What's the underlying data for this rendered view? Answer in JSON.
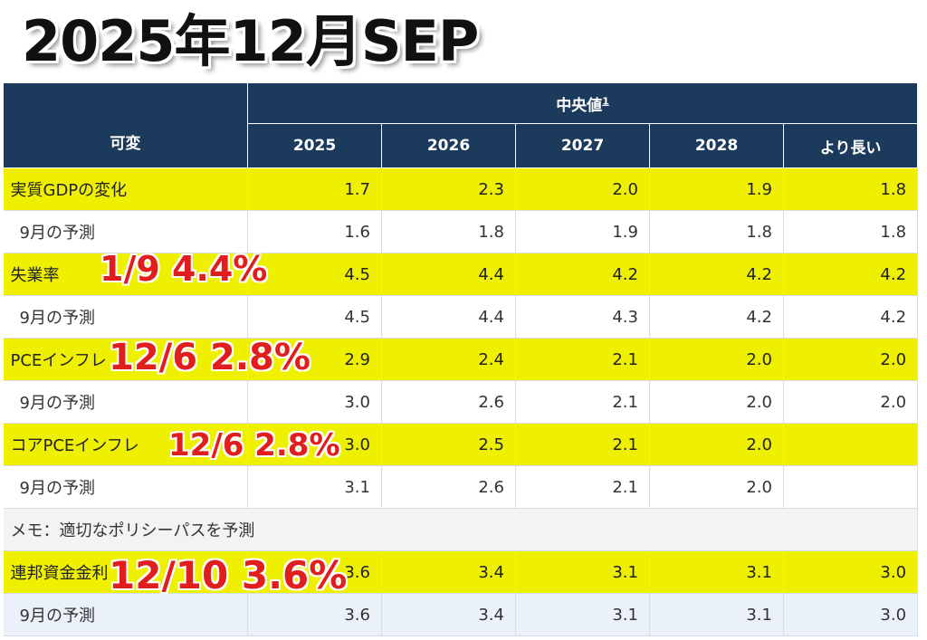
{
  "title": "2025年12月SEP",
  "table": {
    "group_header": "中央値",
    "group_footnote": "1",
    "var_header": "可変",
    "years": [
      "2025",
      "2026",
      "2027",
      "2028",
      "より長い"
    ],
    "rows": [
      {
        "label": "実質GDPの変化",
        "v": [
          "1.7",
          "2.3",
          "2.0",
          "1.9",
          "1.8"
        ]
      },
      {
        "label": "9月の予測",
        "v": [
          "1.6",
          "1.8",
          "1.9",
          "1.8",
          "1.8"
        ]
      },
      {
        "label": "失業率",
        "v": [
          "4.5",
          "4.4",
          "4.2",
          "4.2",
          "4.2"
        ]
      },
      {
        "label": "9月の予測",
        "v": [
          "4.5",
          "4.4",
          "4.3",
          "4.2",
          "4.2"
        ]
      },
      {
        "label": "PCEインフレ",
        "v": [
          "2.9",
          "2.4",
          "2.1",
          "2.0",
          "2.0"
        ]
      },
      {
        "label": "9月の予測",
        "v": [
          "3.0",
          "2.6",
          "2.1",
          "2.0",
          "2.0"
        ]
      },
      {
        "label": "コアPCEインフレ",
        "v": [
          "3.0",
          "2.5",
          "2.1",
          "2.0",
          ""
        ]
      },
      {
        "label": "9月の予測",
        "v": [
          "3.1",
          "2.6",
          "2.1",
          "2.0",
          ""
        ]
      },
      {
        "label": "メモ：適切なポリシーパスを予測"
      },
      {
        "label": "連邦資金金利",
        "v": [
          "3.6",
          "3.4",
          "3.1",
          "3.1",
          "3.0"
        ]
      },
      {
        "label": "9月の予測",
        "v": [
          "3.6",
          "3.4",
          "3.1",
          "3.1",
          "3.0"
        ]
      }
    ]
  },
  "annotations": {
    "unemployment": "1/9  4.4%",
    "pce": "12/6  2.8%",
    "core_pce": "12/6  2.8%",
    "fed_funds": "12/10 3.6%"
  },
  "colors": {
    "header_bg": "#1b3a5c",
    "highlight": "#eef000",
    "annotation_text": "#e01e1e"
  }
}
